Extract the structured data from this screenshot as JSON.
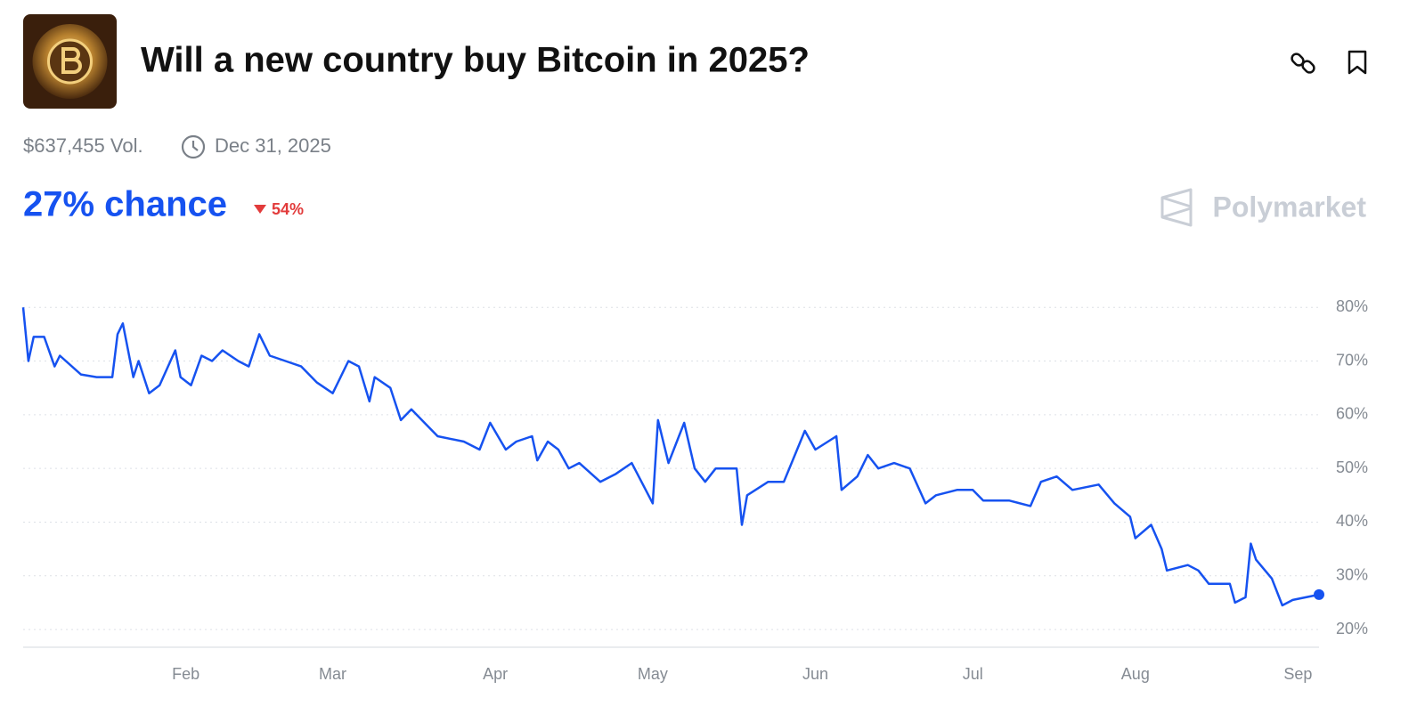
{
  "header": {
    "title": "Will a new country buy Bitcoin in 2025?",
    "volume": "$637,455 Vol.",
    "end_date": "Dec 31, 2025",
    "chance": "27% chance",
    "change": "54%",
    "brand": "Polymarket"
  },
  "chart_data": {
    "type": "line",
    "color": "#1652f0",
    "grid": true,
    "x": [
      0,
      1,
      2,
      4,
      6,
      7,
      11,
      14,
      17,
      18,
      19,
      21,
      22,
      24,
      26,
      29,
      30,
      32,
      34,
      36,
      38,
      41,
      43,
      45,
      47,
      50,
      53,
      56,
      59,
      62,
      64,
      66,
      67,
      70,
      72,
      74,
      76,
      79,
      84,
      87,
      89,
      92,
      94,
      97,
      98,
      100,
      102,
      104,
      106,
      110,
      113,
      116,
      120,
      121,
      123,
      126,
      128,
      130,
      132,
      136,
      137,
      138,
      142,
      145,
      149,
      151,
      155,
      156,
      159,
      161,
      163,
      166,
      169,
      172,
      174,
      178,
      181,
      183,
      188,
      192,
      194,
      197,
      200,
      205,
      208,
      211,
      212,
      215,
      217,
      218,
      222,
      224,
      226,
      230,
      231,
      233,
      234,
      235,
      238,
      240,
      242,
      247
    ],
    "values": [
      80,
      70,
      74.5,
      74.5,
      69,
      71,
      67.5,
      67,
      67,
      75,
      77,
      67,
      70,
      64,
      65.5,
      72,
      67,
      65.5,
      71,
      70,
      72,
      70,
      69,
      75,
      71,
      70,
      69,
      66,
      64,
      70,
      69,
      62.5,
      67,
      65,
      59,
      61,
      59,
      56,
      55,
      53.5,
      58.5,
      53.5,
      55,
      56,
      51.5,
      55,
      53.5,
      50,
      51,
      47.5,
      49,
      51,
      43.5,
      59,
      51,
      58.5,
      50,
      47.5,
      50,
      50,
      39.5,
      45,
      47.5,
      47.5,
      57,
      53.5,
      56,
      46,
      48.5,
      52.5,
      50,
      51,
      50,
      43.5,
      45,
      46,
      46,
      44,
      44,
      43,
      47.5,
      48.5,
      46,
      47,
      43.5,
      41,
      37,
      39.5,
      35,
      31,
      32,
      31,
      28.5,
      28.5,
      25,
      26,
      36,
      33,
      29.5,
      24.5,
      25.5,
      26.5
    ],
    "xlim": [
      0,
      247
    ],
    "xticks": [
      {
        "value": 31,
        "label": "Feb"
      },
      {
        "value": 59,
        "label": "Mar"
      },
      {
        "value": 90,
        "label": "Apr"
      },
      {
        "value": 120,
        "label": "May"
      },
      {
        "value": 151,
        "label": "Jun"
      },
      {
        "value": 181,
        "label": "Jul"
      },
      {
        "value": 212,
        "label": "Aug"
      },
      {
        "value": 243,
        "label": "Sep"
      }
    ],
    "ylim": [
      16.7,
      87
    ],
    "yticks": [
      {
        "value": 20,
        "label": "20%"
      },
      {
        "value": 30,
        "label": "30%"
      },
      {
        "value": 40,
        "label": "40%"
      },
      {
        "value": 50,
        "label": "50%"
      },
      {
        "value": 60,
        "label": "60%"
      },
      {
        "value": 70,
        "label": "70%"
      },
      {
        "value": 80,
        "label": "80%"
      }
    ]
  }
}
